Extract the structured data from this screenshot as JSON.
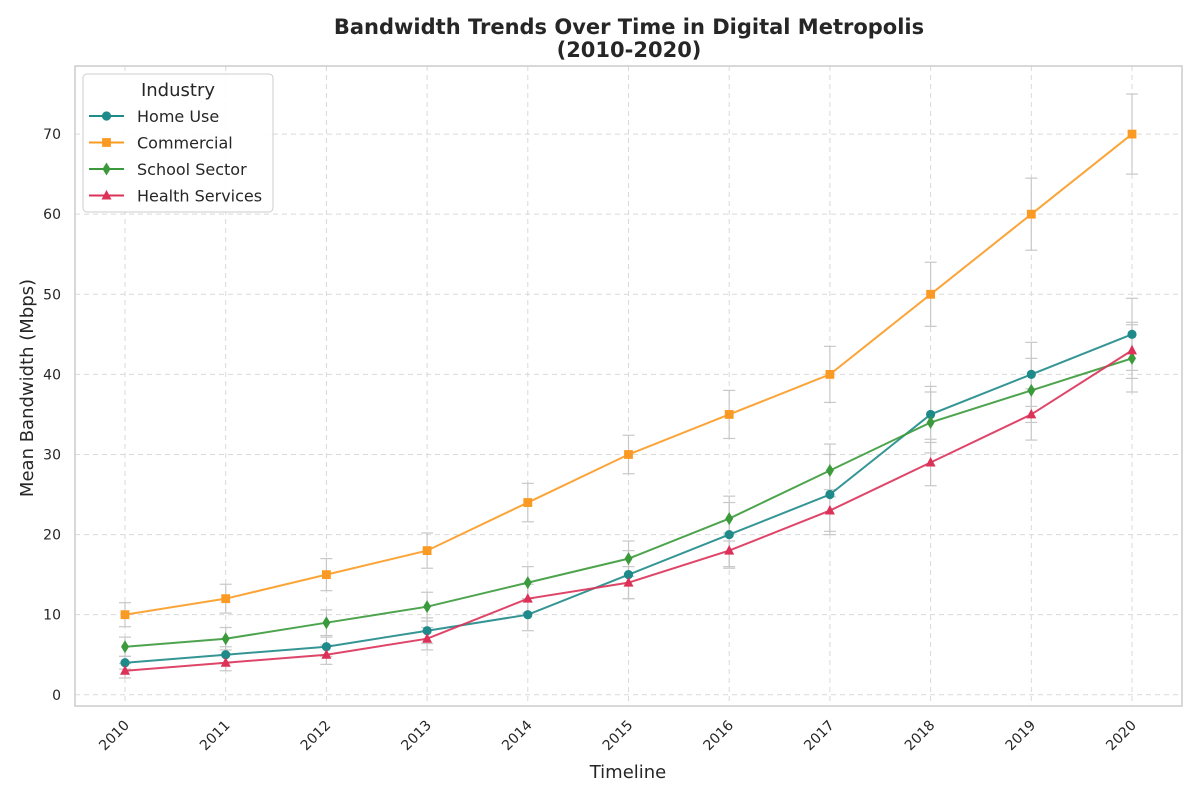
{
  "chart_data": {
    "type": "line",
    "title_line1": "Bandwidth Trends Over Time in Digital Metropolis",
    "title_line2": "(2010-2020)",
    "xlabel": "Timeline",
    "ylabel": "Mean Bandwidth (Mbps)",
    "categories": [
      "2010",
      "2011",
      "2012",
      "2013",
      "2014",
      "2015",
      "2016",
      "2017",
      "2018",
      "2019",
      "2020"
    ],
    "ylim": [
      -1.4,
      78.5
    ],
    "yticks": [
      0,
      10,
      20,
      30,
      40,
      50,
      60,
      70
    ],
    "grid": true,
    "legend": {
      "title": "Industry",
      "placement": "top-left"
    },
    "series": [
      {
        "name": "Home Use",
        "color": "#1f8a8a",
        "marker": "circle",
        "values": [
          4,
          5,
          6,
          8,
          10,
          15,
          20,
          25,
          35,
          40,
          45
        ],
        "errors": [
          0.8,
          1.0,
          1.2,
          1.6,
          2.0,
          3.0,
          4.0,
          5.0,
          3.5,
          4.0,
          4.5
        ]
      },
      {
        "name": "Commercial",
        "color": "#fb9a22",
        "marker": "square",
        "values": [
          10,
          12,
          15,
          18,
          24,
          30,
          35,
          40,
          50,
          60,
          70
        ],
        "errors": [
          1.5,
          1.8,
          2.0,
          2.2,
          2.4,
          2.4,
          3.0,
          3.5,
          4.0,
          4.5,
          5.0
        ]
      },
      {
        "name": "School Sector",
        "color": "#3b9a3b",
        "marker": "diamond",
        "values": [
          6,
          7,
          9,
          11,
          14,
          17,
          22,
          28,
          34,
          38,
          42
        ],
        "errors": [
          1.2,
          1.4,
          1.6,
          1.8,
          2.0,
          2.2,
          2.8,
          3.3,
          3.8,
          4.0,
          4.2
        ]
      },
      {
        "name": "Health Services",
        "color": "#dc3158",
        "marker": "triangle",
        "values": [
          3,
          4,
          5,
          7,
          12,
          14,
          18,
          23,
          29,
          35,
          43
        ],
        "errors": [
          0.9,
          1.0,
          1.2,
          1.4,
          1.8,
          2.0,
          2.2,
          2.6,
          2.9,
          3.2,
          3.5
        ]
      }
    ]
  }
}
